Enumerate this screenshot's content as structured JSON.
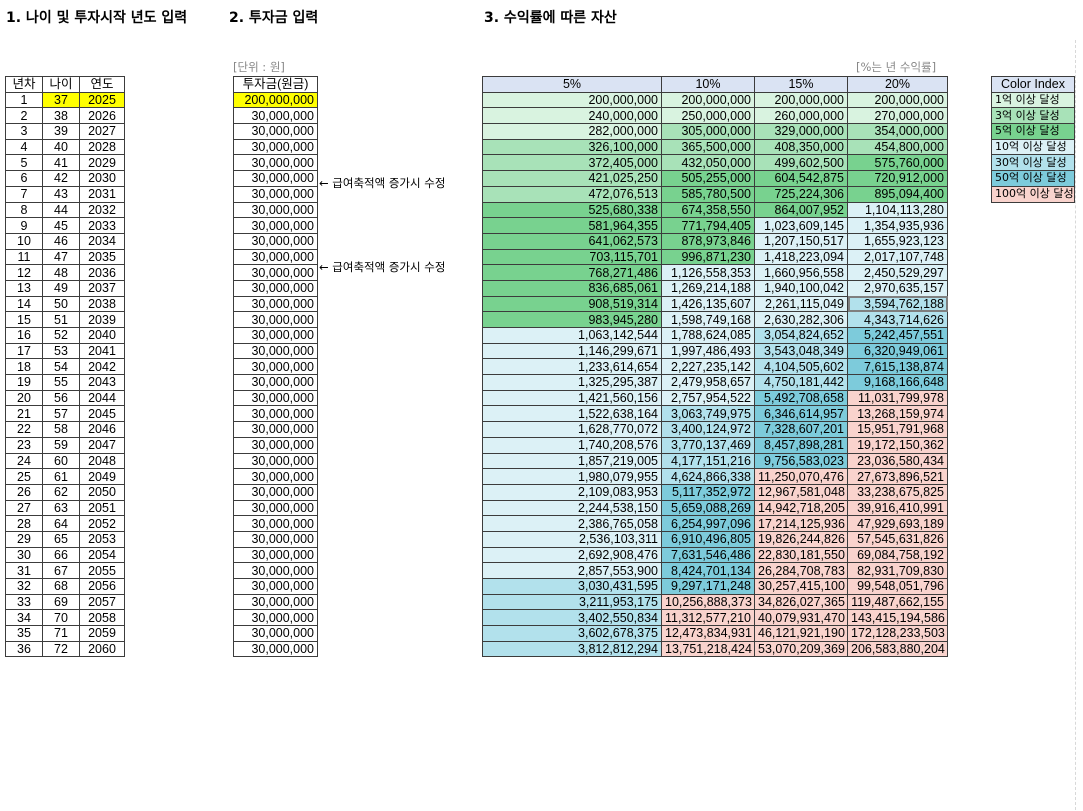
{
  "headings": {
    "section1": "1. 나이 및 투자시작 년도 입력",
    "section2": "2. 투자금 입력",
    "section3": "3. 수익률에 따른 자산"
  },
  "notes": {
    "unit": "[단위 : 원]",
    "rate": "[%는 년 수익률]"
  },
  "memos": [
    {
      "row": 6,
      "text": "← 급여축적액 증가시 수정"
    },
    {
      "row": 11,
      "text": "← 급여축적액 증가시 수정"
    }
  ],
  "colors": {
    "yellow": "#ffff00",
    "over_1e8": "#d9f3e0",
    "over_3e8": "#a8e2b8",
    "over_5e8": "#78d28f",
    "over_1e9": "#dcf1f6",
    "over_3e9": "#b2e1ec",
    "over_5e9": "#7dcbdb",
    "over_1e10": "#f9d3cd",
    "header_blue": "#dae3f3"
  },
  "age_table": {
    "headers": [
      "년차",
      "나이",
      "연도"
    ],
    "rows": [
      [
        "1",
        "37",
        "2025"
      ],
      [
        "2",
        "38",
        "2026"
      ],
      [
        "3",
        "39",
        "2027"
      ],
      [
        "4",
        "40",
        "2028"
      ],
      [
        "5",
        "41",
        "2029"
      ],
      [
        "6",
        "42",
        "2030"
      ],
      [
        "7",
        "43",
        "2031"
      ],
      [
        "8",
        "44",
        "2032"
      ],
      [
        "9",
        "45",
        "2033"
      ],
      [
        "10",
        "46",
        "2034"
      ],
      [
        "11",
        "47",
        "2035"
      ],
      [
        "12",
        "48",
        "2036"
      ],
      [
        "13",
        "49",
        "2037"
      ],
      [
        "14",
        "50",
        "2038"
      ],
      [
        "15",
        "51",
        "2039"
      ],
      [
        "16",
        "52",
        "2040"
      ],
      [
        "17",
        "53",
        "2041"
      ],
      [
        "18",
        "54",
        "2042"
      ],
      [
        "19",
        "55",
        "2043"
      ],
      [
        "20",
        "56",
        "2044"
      ],
      [
        "21",
        "57",
        "2045"
      ],
      [
        "22",
        "58",
        "2046"
      ],
      [
        "23",
        "59",
        "2047"
      ],
      [
        "24",
        "60",
        "2048"
      ],
      [
        "25",
        "61",
        "2049"
      ],
      [
        "26",
        "62",
        "2050"
      ],
      [
        "27",
        "63",
        "2051"
      ],
      [
        "28",
        "64",
        "2052"
      ],
      [
        "29",
        "65",
        "2053"
      ],
      [
        "30",
        "66",
        "2054"
      ],
      [
        "31",
        "67",
        "2055"
      ],
      [
        "32",
        "68",
        "2056"
      ],
      [
        "33",
        "69",
        "2057"
      ],
      [
        "34",
        "70",
        "2058"
      ],
      [
        "35",
        "71",
        "2059"
      ],
      [
        "36",
        "72",
        "2060"
      ]
    ]
  },
  "investment": {
    "header": "투자금(원금)",
    "values": [
      "200,000,000",
      "30,000,000",
      "30,000,000",
      "30,000,000",
      "30,000,000",
      "30,000,000",
      "30,000,000",
      "30,000,000",
      "30,000,000",
      "30,000,000",
      "30,000,000",
      "30,000,000",
      "30,000,000",
      "30,000,000",
      "30,000,000",
      "30,000,000",
      "30,000,000",
      "30,000,000",
      "30,000,000",
      "30,000,000",
      "30,000,000",
      "30,000,000",
      "30,000,000",
      "30,000,000",
      "30,000,000",
      "30,000,000",
      "30,000,000",
      "30,000,000",
      "30,000,000",
      "30,000,000",
      "30,000,000",
      "30,000,000",
      "30,000,000",
      "30,000,000",
      "30,000,000",
      "30,000,000"
    ]
  },
  "assets": {
    "headers": [
      "5%",
      "10%",
      "15%",
      "20%"
    ],
    "rows": [
      [
        "200,000,000",
        "200,000,000",
        "200,000,000",
        "200,000,000"
      ],
      [
        "240,000,000",
        "250,000,000",
        "260,000,000",
        "270,000,000"
      ],
      [
        "282,000,000",
        "305,000,000",
        "329,000,000",
        "354,000,000"
      ],
      [
        "326,100,000",
        "365,500,000",
        "408,350,000",
        "454,800,000"
      ],
      [
        "372,405,000",
        "432,050,000",
        "499,602,500",
        "575,760,000"
      ],
      [
        "421,025,250",
        "505,255,000",
        "604,542,875",
        "720,912,000"
      ],
      [
        "472,076,513",
        "585,780,500",
        "725,224,306",
        "895,094,400"
      ],
      [
        "525,680,338",
        "674,358,550",
        "864,007,952",
        "1,104,113,280"
      ],
      [
        "581,964,355",
        "771,794,405",
        "1,023,609,145",
        "1,354,935,936"
      ],
      [
        "641,062,573",
        "878,973,846",
        "1,207,150,517",
        "1,655,923,123"
      ],
      [
        "703,115,701",
        "996,871,230",
        "1,418,223,094",
        "2,017,107,748"
      ],
      [
        "768,271,486",
        "1,126,558,353",
        "1,660,956,558",
        "2,450,529,297"
      ],
      [
        "836,685,061",
        "1,269,214,188",
        "1,940,100,042",
        "2,970,635,157"
      ],
      [
        "908,519,314",
        "1,426,135,607",
        "2,261,115,049",
        "3,594,762,188"
      ],
      [
        "983,945,280",
        "1,598,749,168",
        "2,630,282,306",
        "4,343,714,626"
      ],
      [
        "1,063,142,544",
        "1,788,624,085",
        "3,054,824,652",
        "5,242,457,551"
      ],
      [
        "1,146,299,671",
        "1,997,486,493",
        "3,543,048,349",
        "6,320,949,061"
      ],
      [
        "1,233,614,654",
        "2,227,235,142",
        "4,104,505,602",
        "7,615,138,874"
      ],
      [
        "1,325,295,387",
        "2,479,958,657",
        "4,750,181,442",
        "9,168,166,648"
      ],
      [
        "1,421,560,156",
        "2,757,954,522",
        "5,492,708,658",
        "11,031,799,978"
      ],
      [
        "1,522,638,164",
        "3,063,749,975",
        "6,346,614,957",
        "13,268,159,974"
      ],
      [
        "1,628,770,072",
        "3,400,124,972",
        "7,328,607,201",
        "15,951,791,968"
      ],
      [
        "1,740,208,576",
        "3,770,137,469",
        "8,457,898,281",
        "19,172,150,362"
      ],
      [
        "1,857,219,005",
        "4,177,151,216",
        "9,756,583,023",
        "23,036,580,434"
      ],
      [
        "1,980,079,955",
        "4,624,866,338",
        "11,250,070,476",
        "27,673,896,521"
      ],
      [
        "2,109,083,953",
        "5,117,352,972",
        "12,967,581,048",
        "33,238,675,825"
      ],
      [
        "2,244,538,150",
        "5,659,088,269",
        "14,942,718,205",
        "39,916,410,991"
      ],
      [
        "2,386,765,058",
        "6,254,997,096",
        "17,214,125,936",
        "47,929,693,189"
      ],
      [
        "2,536,103,311",
        "6,910,496,805",
        "19,826,244,826",
        "57,545,631,826"
      ],
      [
        "2,692,908,476",
        "7,631,546,486",
        "22,830,181,550",
        "69,084,758,192"
      ],
      [
        "2,857,553,900",
        "8,424,701,134",
        "26,284,708,783",
        "82,931,709,830"
      ],
      [
        "3,030,431,595",
        "9,297,171,248",
        "30,257,415,100",
        "99,548,051,796"
      ],
      [
        "3,211,953,175",
        "10,256,888,373",
        "34,826,027,365",
        "119,487,662,155"
      ],
      [
        "3,402,550,834",
        "11,312,577,210",
        "40,079,931,470",
        "143,415,194,586"
      ],
      [
        "3,602,678,375",
        "12,473,834,931",
        "46,121,921,190",
        "172,128,233,503"
      ],
      [
        "3,812,812,294",
        "13,751,218,424",
        "53,070,209,369",
        "206,583,880,204"
      ]
    ]
  },
  "color_index": {
    "header": "Color Index",
    "items": [
      {
        "label": "1억 이상 달성",
        "color": "#d9f3e0"
      },
      {
        "label": "3억 이상 달성",
        "color": "#a8e2b8"
      },
      {
        "label": "5억 이상 달성",
        "color": "#78d28f"
      },
      {
        "label": "10억 이상 달성",
        "color": "#dcf1f6"
      },
      {
        "label": "30억 이상 달성",
        "color": "#b2e1ec"
      },
      {
        "label": "50억 이상 달성",
        "color": "#7dcbdb"
      },
      {
        "label": "100억 이상 달성",
        "color": "#f9d3cd"
      }
    ]
  }
}
